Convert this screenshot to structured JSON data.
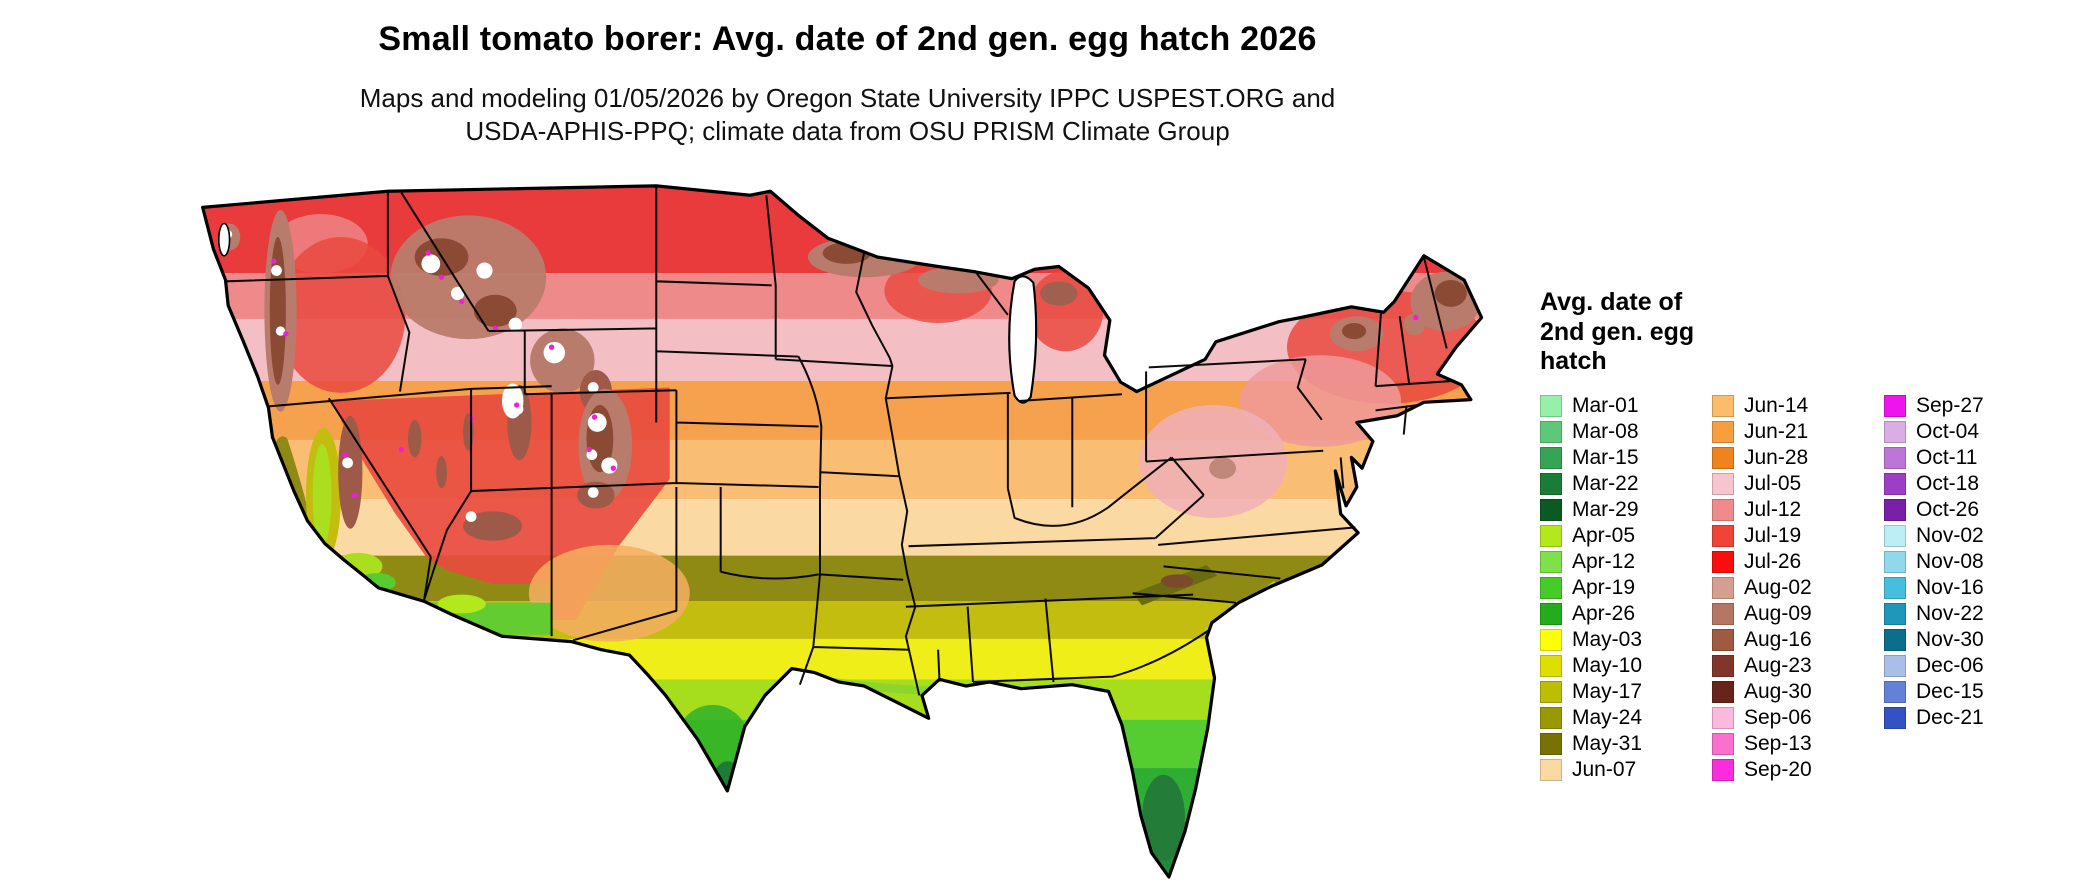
{
  "page": {
    "background_color": "#ffffff"
  },
  "header": {
    "title": "Small tomato borer: Avg. date of 2nd gen. egg hatch 2026",
    "subtitle_lines": [
      "Maps and modeling 01/05/2026 by Oregon State University IPPC USPEST.ORG and",
      "USDA-APHIS-PPQ; climate data from OSU PRISM Climate Group"
    ]
  },
  "legend": {
    "title_lines": [
      "Avg. date of",
      "2nd gen. egg",
      "hatch"
    ],
    "columns": [
      {
        "entries": [
          {
            "label": "Mar-01",
            "color": "#97f0a9"
          },
          {
            "label": "Mar-08",
            "color": "#5dc878"
          },
          {
            "label": "Mar-15",
            "color": "#36a355"
          },
          {
            "label": "Mar-22",
            "color": "#1b7c38"
          },
          {
            "label": "Mar-29",
            "color": "#0b5a23"
          },
          {
            "label": "Apr-05",
            "color": "#b2e81c"
          },
          {
            "label": "Apr-12",
            "color": "#7ee04a"
          },
          {
            "label": "Apr-19",
            "color": "#46cc28"
          },
          {
            "label": "Apr-26",
            "color": "#23ad1d"
          },
          {
            "label": "May-03",
            "color": "#feff00"
          },
          {
            "label": "May-10",
            "color": "#dede00"
          },
          {
            "label": "May-17",
            "color": "#bebe00"
          },
          {
            "label": "May-24",
            "color": "#9a9a00"
          },
          {
            "label": "May-31",
            "color": "#787300"
          },
          {
            "label": "Jun-07",
            "color": "#fbd9a3"
          }
        ]
      },
      {
        "entries": [
          {
            "label": "Jun-14",
            "color": "#fbbc6c"
          },
          {
            "label": "Jun-21",
            "color": "#f99e3e"
          },
          {
            "label": "Jun-28",
            "color": "#f0831c"
          },
          {
            "label": "Jul-05",
            "color": "#f6c6cc"
          },
          {
            "label": "Jul-12",
            "color": "#ef8b8b"
          },
          {
            "label": "Jul-19",
            "color": "#f04438"
          },
          {
            "label": "Jul-26",
            "color": "#fb0d0d"
          },
          {
            "label": "Aug-02",
            "color": "#d3a090"
          },
          {
            "label": "Aug-09",
            "color": "#b57764"
          },
          {
            "label": "Aug-16",
            "color": "#a05a42"
          },
          {
            "label": "Aug-23",
            "color": "#82362a"
          },
          {
            "label": "Aug-30",
            "color": "#67241b"
          },
          {
            "label": "Sep-06",
            "color": "#fcb8dd"
          },
          {
            "label": "Sep-13",
            "color": "#fb70cd"
          },
          {
            "label": "Sep-20",
            "color": "#fb2cdc"
          }
        ]
      },
      {
        "entries": [
          {
            "label": "Sep-27",
            "color": "#ee14ee"
          },
          {
            "label": "Oct-04",
            "color": "#d9aee4"
          },
          {
            "label": "Oct-11",
            "color": "#bd76d8"
          },
          {
            "label": "Oct-18",
            "color": "#9b3fc8"
          },
          {
            "label": "Oct-26",
            "color": "#7a1fa8"
          },
          {
            "label": "Nov-02",
            "color": "#bdeef6"
          },
          {
            "label": "Nov-08",
            "color": "#8fd8ee"
          },
          {
            "label": "Nov-16",
            "color": "#46bede"
          },
          {
            "label": "Nov-22",
            "color": "#1f97bb"
          },
          {
            "label": "Nov-30",
            "color": "#0c6e8c"
          },
          {
            "label": "Dec-06",
            "color": "#aabfe8"
          },
          {
            "label": "Dec-15",
            "color": "#6381d8"
          },
          {
            "label": "Dec-21",
            "color": "#3353c4"
          }
        ]
      }
    ]
  }
}
